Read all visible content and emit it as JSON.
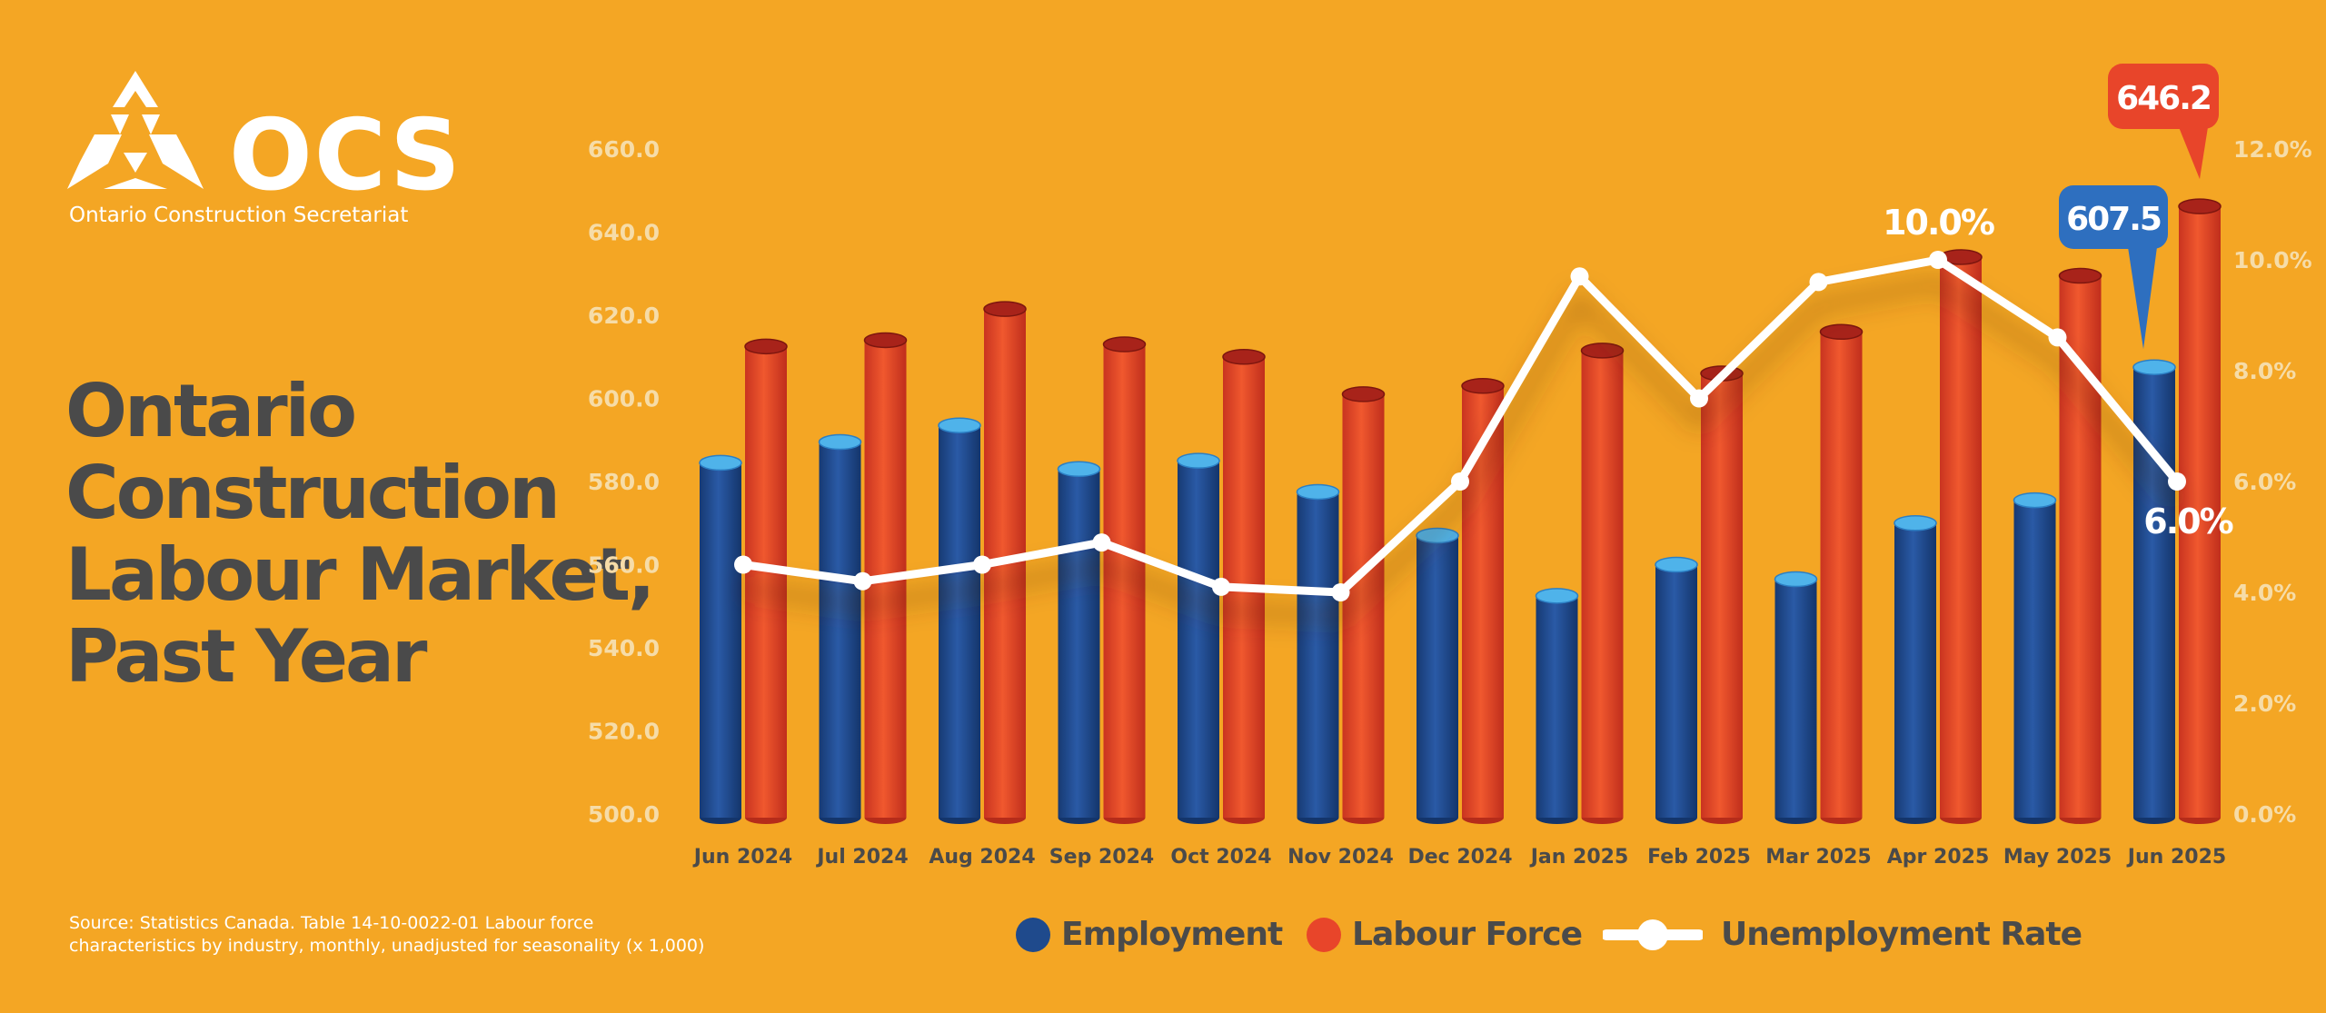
{
  "brand": {
    "logo_text": "OCS",
    "organization": "Ontario Construction Secretariat"
  },
  "title_lines": [
    "Ontario",
    "Construction",
    "Labour Market,",
    "Past Year"
  ],
  "source_lines": [
    "Source: Statistics Canada. Table 14-10-0022-01  Labour force",
    "characteristics by industry, monthly, unadjusted for seasonality (x 1,000)"
  ],
  "legend": {
    "employment": "Employment",
    "labour_force": "Labour Force",
    "unemployment_rate": "Unemployment Rate"
  },
  "colors": {
    "background": "#F4A624",
    "employment": "#1F4A8C",
    "labour_force": "#E8452A",
    "unemployment_rate": "#FFFFFF",
    "callout_employment": "#2E6FBF",
    "callout_labour_force": "#E8452A",
    "title_text": "#4A4A4A",
    "axis_text": "#F6DCA8"
  },
  "chart_data": {
    "type": "bar",
    "categories": [
      "Jun 2024",
      "Jul 2024",
      "Aug 2024",
      "Sep 2024",
      "Oct 2024",
      "Nov 2024",
      "Dec 2024",
      "Jan 2025",
      "Feb 2025",
      "Mar 2025",
      "Apr 2025",
      "May 2025",
      "Jun 2025"
    ],
    "series": [
      {
        "name": "Employment",
        "type": "bar",
        "axis": "left",
        "values": [
          584.5,
          589.5,
          593.5,
          583,
          585,
          577.5,
          567,
          552.5,
          560,
          556.5,
          570,
          575.5,
          607.5
        ]
      },
      {
        "name": "Labour Force",
        "type": "bar",
        "axis": "left",
        "values": [
          612.5,
          614,
          621.5,
          613,
          610,
          601,
          603,
          611.5,
          606,
          616,
          634,
          629.5,
          646.2
        ]
      },
      {
        "name": "Unemployment Rate",
        "type": "line",
        "axis": "right",
        "values": [
          4.5,
          4.2,
          4.5,
          4.9,
          4.1,
          4.0,
          6.0,
          9.7,
          7.5,
          9.6,
          10.0,
          8.6,
          6.0
        ]
      }
    ],
    "y_left": {
      "min": 500,
      "max": 660,
      "ticks": [
        "500.0",
        "520.0",
        "540.0",
        "560.0",
        "580.0",
        "600.0",
        "620.0",
        "640.0",
        "660.0"
      ]
    },
    "y_right": {
      "min": 0,
      "max": 12,
      "ticks": [
        "0.0%",
        "2.0%",
        "4.0%",
        "6.0%",
        "8.0%",
        "10.0%",
        "12.0%"
      ]
    },
    "annotations": {
      "employment_last": "607.5",
      "labour_force_last": "646.2",
      "rate_peak": "10.0%",
      "rate_last": "6.0%"
    },
    "grid": false,
    "legend_position": "bottom"
  }
}
